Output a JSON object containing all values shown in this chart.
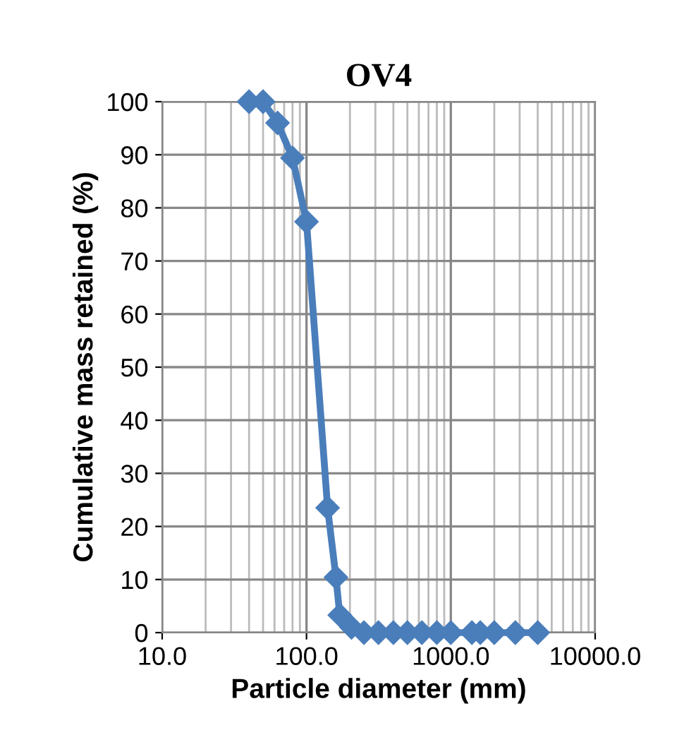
{
  "chart_data": {
    "type": "line",
    "title": "OV4",
    "xlabel": "Particle diameter (mm)",
    "ylabel": "Cumulative mass retained (%)",
    "log": "x",
    "grid": true,
    "marker": "diamond",
    "line_style": "solid",
    "xlim": [
      10,
      10000
    ],
    "xticks": [
      {
        "value": 10,
        "label": "10.0"
      },
      {
        "value": 100,
        "label": "100.0"
      },
      {
        "value": 1000,
        "label": "1000.0"
      },
      {
        "value": 10000,
        "label": "10000.0"
      }
    ],
    "ylim": [
      0,
      100
    ],
    "yticks": [
      0,
      10,
      20,
      30,
      40,
      50,
      60,
      70,
      80,
      90,
      100
    ],
    "x": [
      40,
      50,
      63,
      80,
      100,
      140,
      160,
      170,
      205,
      250,
      315,
      400,
      500,
      630,
      800,
      1000,
      1400,
      1600,
      2000,
      2800,
      4000
    ],
    "series": [
      {
        "color": "#4a7ebb",
        "values": [
          100,
          100,
          96,
          89.4,
          77.4,
          23.5,
          10.4,
          3.3,
          1,
          0,
          0,
          0,
          0,
          0,
          0,
          0,
          0,
          0,
          0,
          0,
          0
        ]
      }
    ]
  }
}
